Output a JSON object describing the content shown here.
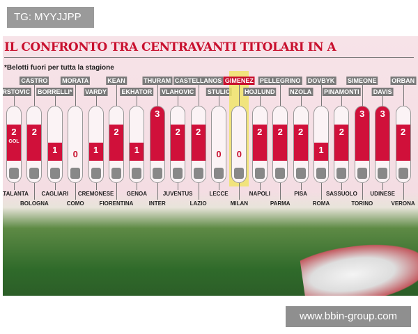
{
  "tag": "TG: MYYJJPP",
  "watermark": "www.bbin-group.com",
  "chart_data": {
    "type": "bar",
    "title": "IL CONFRONTO TRA CENTRAVANTI TITOLARI IN A",
    "note": "*Belotti fuori per tutta la stagione",
    "unit_label": "GOL",
    "highlight": "GIMENEZ",
    "categories": [
      "ATALANTA",
      "BOLOGNA",
      "CAGLIARI",
      "COMO",
      "CREMONESE",
      "FIORENTINA",
      "GENOA",
      "INTER",
      "JUVENTUS",
      "LAZIO",
      "LECCE",
      "MILAN",
      "NAPOLI",
      "PARMA",
      "PISA",
      "ROMA",
      "SASSUOLO",
      "TORINO",
      "UDINESE",
      "VERONA"
    ],
    "players": [
      "KRSTOVIC",
      "CASTRO",
      "BORRELLI*",
      "MORATA",
      "VARDY",
      "KEAN",
      "EKHATOR",
      "THURAM",
      "VLAHOVIC",
      "CASTELLANOS",
      "STULIC",
      "GIMENEZ",
      "HOJLUND",
      "NZOLA",
      "DOVBYK",
      "PINAMONTI",
      "SIMEONE",
      "DAVIS",
      "ORBAN",
      "PELLEGRINO"
    ],
    "values": [
      2,
      2,
      1,
      0,
      1,
      2,
      1,
      3,
      2,
      2,
      0,
      0,
      2,
      2,
      2,
      1,
      2,
      3,
      3,
      2
    ],
    "ylim": [
      0,
      3
    ],
    "colors": {
      "bar": "#d0103a",
      "title": "#c8102e",
      "label": "#7a7a7a"
    }
  }
}
